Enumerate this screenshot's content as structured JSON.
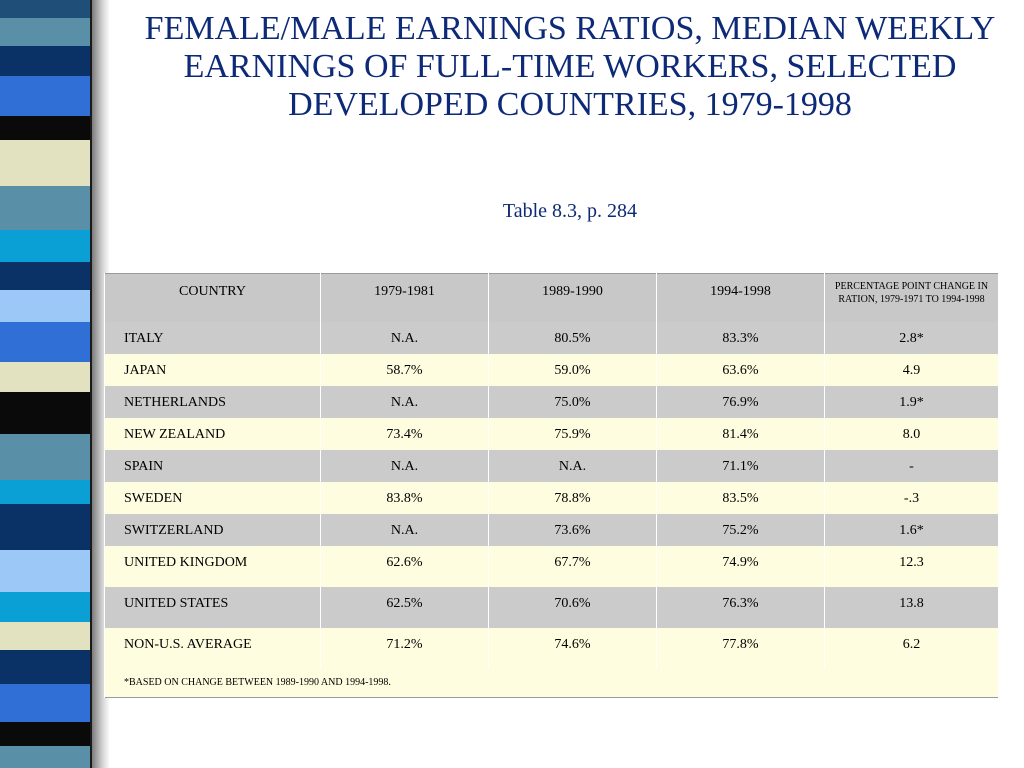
{
  "slide": {
    "title": "FEMALE/MALE EARNINGS RATIOS, MEDIAN WEEKLY EARNINGS OF FULL-TIME WORKERS, SELECTED DEVELOPED COUNTRIES, 1979-1998",
    "subtitle": "Table 8.3, p. 284"
  },
  "table": {
    "headers": [
      "COUNTRY",
      "1979-1981",
      "1989-1990",
      "1994-1998",
      "PERCENTAGE POINT CHANGE IN RATION, 1979-1971 TO 1994-1998"
    ],
    "rows": [
      [
        "ITALY",
        "N.A.",
        "80.5%",
        "83.3%",
        "2.8*"
      ],
      [
        "JAPAN",
        "58.7%",
        "59.0%",
        "63.6%",
        "4.9"
      ],
      [
        "NETHERLANDS",
        "N.A.",
        "75.0%",
        "76.9%",
        "1.9*"
      ],
      [
        "NEW ZEALAND",
        "73.4%",
        "75.9%",
        "81.4%",
        "8.0"
      ],
      [
        "SPAIN",
        "N.A.",
        "N.A.",
        "71.1%",
        "-"
      ],
      [
        "SWEDEN",
        "83.8%",
        "78.8%",
        "83.5%",
        "-.3"
      ],
      [
        "SWITZERLAND",
        "N.A.",
        "73.6%",
        "75.2%",
        "1.6*"
      ],
      [
        "UNITED KINGDOM",
        "62.6%",
        "67.7%",
        "74.9%",
        "12.3"
      ],
      [
        "UNITED STATES",
        "62.5%",
        "70.6%",
        "76.3%",
        "13.8"
      ],
      [
        "NON-U.S. AVERAGE",
        "71.2%",
        "74.6%",
        "77.8%",
        "6.2"
      ]
    ],
    "footnote": "*BASED ON CHANGE BETWEEN 1989-1990 AND 1994-1998."
  },
  "colors": {
    "title": "#0d2a78",
    "row_gray": "#cbcbcb",
    "row_cream": "#fffde0",
    "header_bg": "#c8c8c8"
  }
}
